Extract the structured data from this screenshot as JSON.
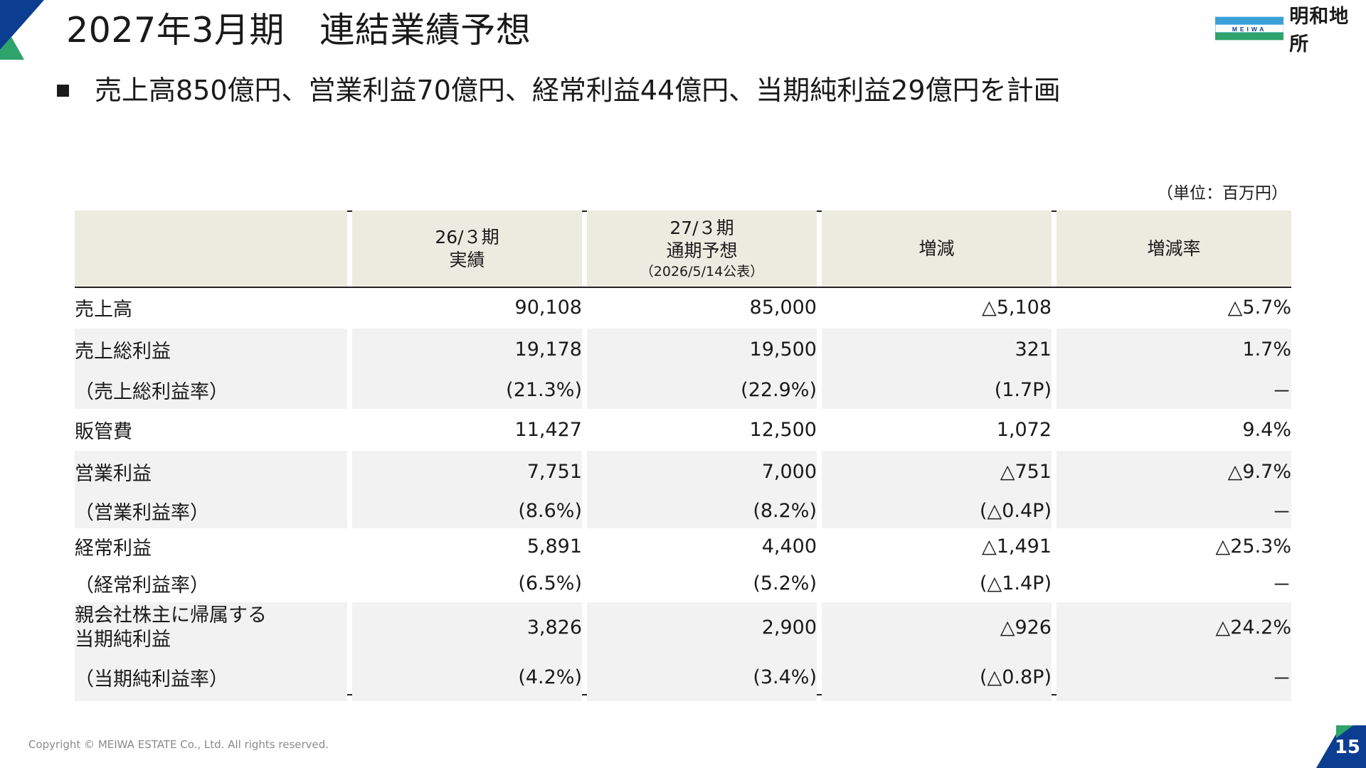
{
  "header": {
    "title": "2027年3月期　連結業績予想",
    "logo_text": "明和地所",
    "logo_mark_text": "MEIWA"
  },
  "bullet": "売上高850億円、営業利益70億円、経常利益44億円、当期純利益29億円を計画",
  "unit": "（単位：百万円）",
  "table": {
    "headers": {
      "col1_line1": "26/３期",
      "col1_line2": "実績",
      "col2_line1": "27/３期",
      "col2_line2": "通期予想",
      "col2_sub": "（2026/5/14公表）",
      "col3": "増減",
      "col4": "増減率"
    },
    "rows": [
      {
        "label": "売上高",
        "v1": "90,108",
        "v2": "85,000",
        "v3": "△5,108",
        "v4": "△5.7%"
      },
      {
        "label": "売上総利益",
        "v1": "19,178",
        "v2": "19,500",
        "v3": "321",
        "v4": "1.7%"
      },
      {
        "label": "（売上総利益率）",
        "v1": "(21.3%)",
        "v2": "(22.9%)",
        "v3": "(1.7P)",
        "v4": "－"
      },
      {
        "label": "販管費",
        "v1": "11,427",
        "v2": "12,500",
        "v3": "1,072",
        "v4": "9.4%"
      },
      {
        "label": "営業利益",
        "v1": "7,751",
        "v2": "7,000",
        "v3": "△751",
        "v4": "△9.7%"
      },
      {
        "label": "（営業利益率）",
        "v1": "(8.6%)",
        "v2": "(8.2%)",
        "v3": "(△0.4P)",
        "v4": "－"
      },
      {
        "label": "経常利益",
        "v1": "5,891",
        "v2": "4,400",
        "v3": "△1,491",
        "v4": "△25.3%"
      },
      {
        "label": "（経常利益率）",
        "v1": "(6.5%)",
        "v2": "(5.2%)",
        "v3": "(△1.4P)",
        "v4": "－"
      },
      {
        "label_line1": "親会社株主に帰属する",
        "label_line2": "当期純利益",
        "v1": "3,826",
        "v2": "2,900",
        "v3": "△926",
        "v4": "△24.2%"
      },
      {
        "label": "（当期純利益率）",
        "v1": "(4.2%)",
        "v2": "(3.4%)",
        "v3": "(△0.8P)",
        "v4": "－"
      }
    ]
  },
  "footer": "Copyright © MEIWA ESTATE Co., Ltd. All rights reserved.",
  "page_number": "15",
  "colors": {
    "accent_blue": "#0b3d91",
    "accent_green": "#2ea36b",
    "accent_lightblue": "#3aa0d8",
    "header_bg": "#ecebe0",
    "row_shade": "#f2f2f2"
  }
}
